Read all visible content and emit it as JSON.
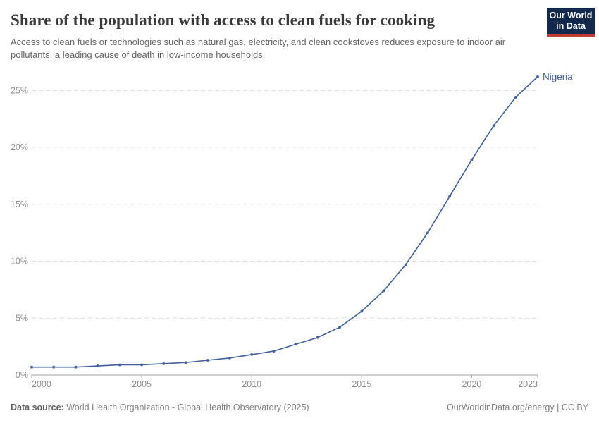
{
  "logo": {
    "line1": "Our World",
    "line2": "in Data"
  },
  "chart_data": {
    "type": "line",
    "title": "Share of the population with access to clean fuels for cooking",
    "subtitle": "Access to clean fuels or technologies such as natural gas, electricity, and clean cookstoves reduces exposure to indoor air pollutants, a leading cause of death in low-income households.",
    "x": [
      2000,
      2001,
      2002,
      2003,
      2004,
      2005,
      2006,
      2007,
      2008,
      2009,
      2010,
      2011,
      2012,
      2013,
      2014,
      2015,
      2016,
      2017,
      2018,
      2019,
      2020,
      2021,
      2022,
      2023
    ],
    "series": [
      {
        "name": "Nigeria",
        "color": "#41609b",
        "values": [
          0.7,
          0.7,
          0.7,
          0.8,
          0.9,
          0.9,
          1.0,
          1.1,
          1.3,
          1.5,
          1.8,
          2.1,
          2.7,
          3.3,
          4.2,
          5.6,
          7.4,
          9.7,
          12.5,
          15.7,
          18.9,
          21.9,
          24.4,
          26.2
        ]
      }
    ],
    "xlabel": "",
    "ylabel": "",
    "xlim": [
      2000,
      2023
    ],
    "ylim": [
      0,
      26.5
    ],
    "x_ticks": [
      2000,
      2005,
      2010,
      2015,
      2020,
      2023
    ],
    "y_ticks": [
      {
        "value": 0,
        "label": "0%"
      },
      {
        "value": 5,
        "label": "5%"
      },
      {
        "value": 10,
        "label": "10%"
      },
      {
        "value": 15,
        "label": "15%"
      },
      {
        "value": 20,
        "label": "20%"
      },
      {
        "value": 25,
        "label": "25%"
      }
    ],
    "grid": "horizontal-dashed",
    "legend_position": "end-of-line-label"
  },
  "colors": {
    "line": "#41609b",
    "grid": "#dcdcdc",
    "axis": "#a3a3a3",
    "tick_text": "#8c8c8c",
    "logo_bg": "#14294e",
    "logo_accent": "#c53d36"
  },
  "footer": {
    "source_label": "Data source:",
    "source_text": "World Health Organization - Global Health Observatory (2025)",
    "rights": "OurWorldinData.org/energy | CC BY"
  }
}
